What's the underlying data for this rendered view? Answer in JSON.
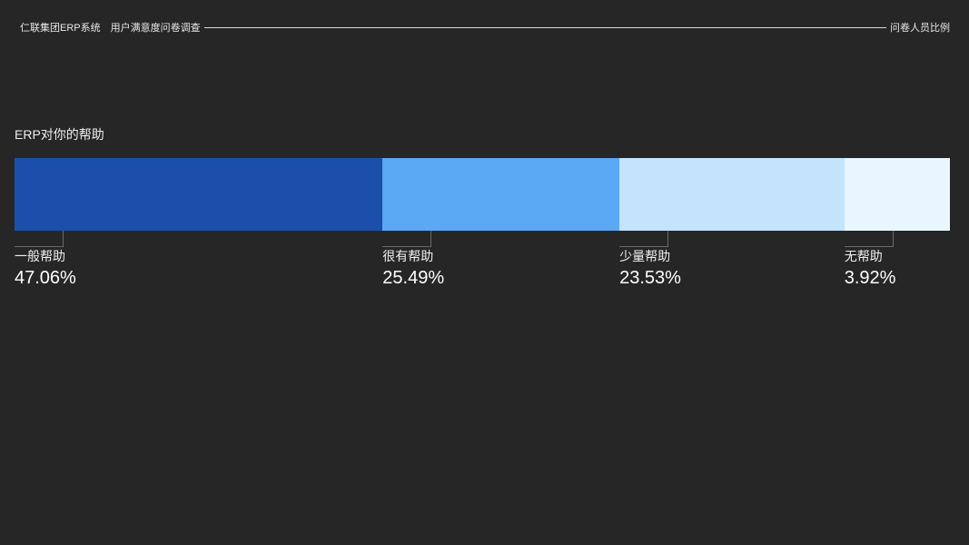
{
  "header": {
    "system": "仁联集团ERP系统",
    "survey": "用户满意度问卷调查",
    "right": "问卷人员比例"
  },
  "chart_data": {
    "type": "bar",
    "stacked": true,
    "orientation": "horizontal",
    "title": "ERP对你的帮助",
    "unit": "%",
    "categories": [
      "一般帮助",
      "很有帮助",
      "少量帮助",
      "无帮助"
    ],
    "values": [
      47.06,
      25.49,
      23.53,
      3.92
    ],
    "labels": [
      "47.06%",
      "25.49%",
      "23.53%",
      "3.92%"
    ],
    "colors": [
      "#1c4fab",
      "#5ba8f5",
      "#c3e4fb",
      "#e8f6ff"
    ]
  }
}
